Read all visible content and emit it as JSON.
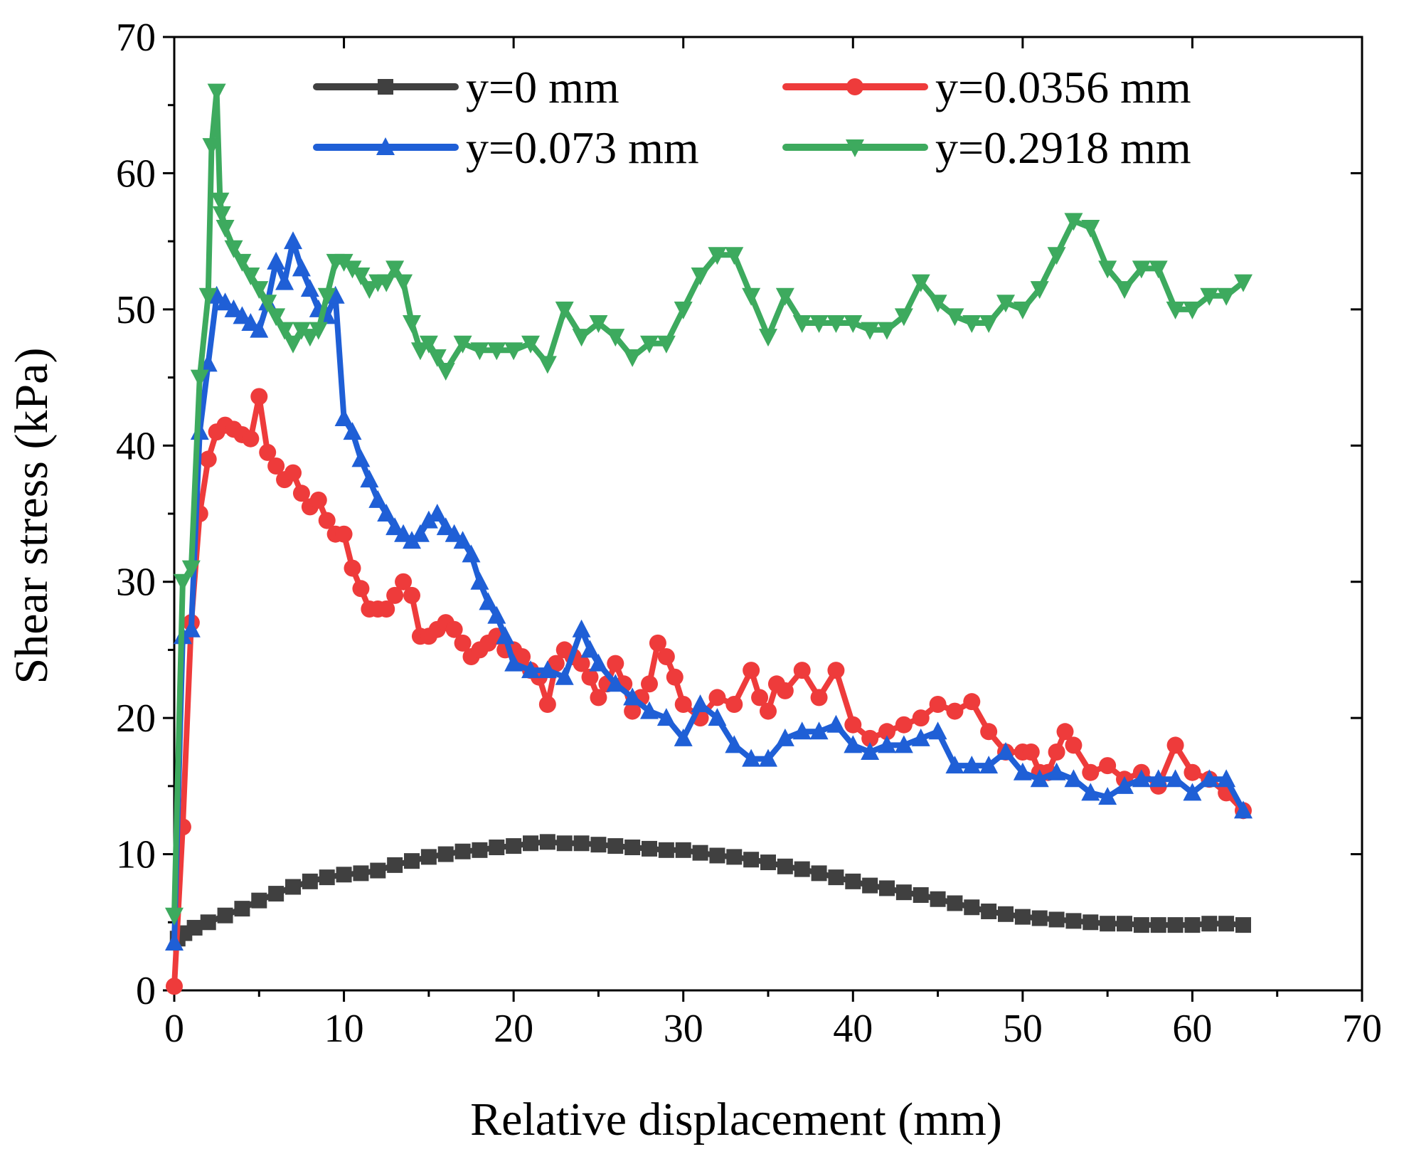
{
  "chart_data": {
    "type": "line",
    "title": "",
    "xlabel": "Relative displacement (mm)",
    "ylabel": "Shear stress (kPa)",
    "xlim": [
      0,
      70
    ],
    "ylim": [
      0,
      70
    ],
    "xticks": [
      0,
      10,
      20,
      30,
      40,
      50,
      60,
      70
    ],
    "yticks": [
      0,
      10,
      20,
      30,
      40,
      50,
      60,
      70
    ],
    "xtick_labels": [
      "0",
      "10",
      "20",
      "30",
      "40",
      "50",
      "60",
      "70"
    ],
    "ytick_labels": [
      "0",
      "10",
      "20",
      "30",
      "40",
      "50",
      "60",
      "70"
    ],
    "legend_position": "top",
    "grid": false,
    "series": [
      {
        "name": "y=0 mm",
        "color": "#404040",
        "marker": "square",
        "x": [
          0.2,
          0.6,
          1.2,
          2,
          3,
          4,
          5,
          6,
          7,
          8,
          9,
          10,
          11,
          12,
          13,
          14,
          15,
          16,
          17,
          18,
          19,
          20,
          21,
          22,
          23,
          24,
          25,
          26,
          27,
          28,
          29,
          30,
          31,
          32,
          33,
          34,
          35,
          36,
          37,
          38,
          39,
          40,
          41,
          42,
          43,
          44,
          45,
          46,
          47,
          48,
          49,
          50,
          51,
          52,
          53,
          54,
          55,
          56,
          57,
          58,
          59,
          60,
          61,
          62,
          63
        ],
        "y": [
          3.8,
          4.2,
          4.6,
          5.0,
          5.5,
          6.0,
          6.6,
          7.1,
          7.6,
          8.0,
          8.3,
          8.5,
          8.6,
          8.8,
          9.2,
          9.5,
          9.8,
          10.0,
          10.2,
          10.3,
          10.5,
          10.6,
          10.8,
          10.9,
          10.8,
          10.8,
          10.7,
          10.6,
          10.5,
          10.4,
          10.3,
          10.3,
          10.1,
          9.9,
          9.8,
          9.6,
          9.4,
          9.1,
          8.9,
          8.6,
          8.3,
          8.0,
          7.7,
          7.5,
          7.2,
          7.0,
          6.7,
          6.4,
          6.1,
          5.8,
          5.6,
          5.4,
          5.3,
          5.2,
          5.1,
          5.0,
          4.9,
          4.9,
          4.8,
          4.8,
          4.8,
          4.8,
          4.9,
          4.9,
          4.8
        ]
      },
      {
        "name": "y=0.0356 mm",
        "color": "#ee3b3b",
        "marker": "circle",
        "x": [
          0,
          0.5,
          1,
          1.5,
          2,
          2.5,
          3,
          3.5,
          4,
          4.5,
          5,
          5.5,
          6,
          6.5,
          7,
          7.5,
          8,
          8.5,
          9,
          9.5,
          10,
          10.5,
          11,
          11.5,
          12,
          12.5,
          13,
          13.5,
          14,
          14.5,
          15,
          15.5,
          16,
          16.5,
          17,
          17.5,
          18,
          18.5,
          19,
          19.5,
          20,
          20.5,
          21,
          21.5,
          22,
          22.5,
          23,
          23.5,
          24,
          24.5,
          25,
          25.5,
          26,
          26.5,
          27,
          27.5,
          28,
          28.5,
          29,
          29.5,
          30,
          31,
          32,
          33,
          34,
          34.5,
          35,
          35.5,
          36,
          37,
          38,
          39,
          40,
          41,
          42,
          43,
          44,
          45,
          46,
          47,
          48,
          49,
          50,
          50.5,
          51,
          51.5,
          52,
          52.5,
          53,
          54,
          55,
          56,
          57,
          58,
          59,
          60,
          61,
          62,
          63
        ],
        "y": [
          0.3,
          12,
          27,
          35,
          39,
          41,
          41.5,
          41.2,
          40.8,
          40.5,
          43.6,
          39.5,
          38.5,
          37.5,
          38,
          36.5,
          35.5,
          36,
          34.5,
          33.5,
          33.5,
          31,
          29.5,
          28,
          28,
          28,
          29,
          30,
          29,
          26,
          26,
          26.5,
          27,
          26.5,
          25.5,
          24.5,
          25,
          25.5,
          26,
          25,
          25,
          24.5,
          23.5,
          23,
          21,
          24,
          25,
          24.5,
          24,
          23,
          21.5,
          22.5,
          24,
          22.5,
          20.5,
          21.5,
          22.5,
          25.5,
          24.5,
          23,
          21,
          20,
          21.5,
          21,
          23.5,
          21.5,
          20.5,
          22.5,
          22,
          23.5,
          21.5,
          23.5,
          19.5,
          18.5,
          19,
          19.5,
          20,
          21,
          20.5,
          21.2,
          19,
          17.5,
          17.5,
          17.5,
          16,
          16,
          17.5,
          19,
          18,
          16,
          16.5,
          15.5,
          16,
          15,
          18,
          16,
          15.5,
          14.5,
          13.2
        ]
      },
      {
        "name": "y=0.073 mm",
        "color": "#1f5fd6",
        "marker": "triangle-up",
        "x": [
          0,
          0.5,
          1,
          1.5,
          2,
          2.5,
          3,
          3.5,
          4,
          4.5,
          5,
          5.5,
          6,
          6.5,
          7,
          7.5,
          8,
          8.5,
          9,
          9.5,
          10,
          10.5,
          11,
          11.5,
          12,
          12.5,
          13,
          13.5,
          14,
          14.5,
          15,
          15.5,
          16,
          16.5,
          17,
          17.5,
          18,
          18.5,
          19,
          19.5,
          20,
          21,
          22,
          23,
          24,
          24.5,
          25,
          26,
          27,
          28,
          29,
          30,
          31,
          32,
          33,
          34,
          35,
          36,
          37,
          38,
          39,
          40,
          41,
          42,
          43,
          44,
          45,
          46,
          47,
          48,
          49,
          50,
          51,
          52,
          53,
          54,
          55,
          56,
          57,
          58,
          59,
          60,
          61,
          62,
          63
        ],
        "y": [
          3.5,
          26,
          26.5,
          41,
          46,
          51,
          50.5,
          50,
          49.5,
          49,
          48.5,
          50.5,
          53.5,
          52,
          55,
          53,
          51.5,
          50,
          49.5,
          51,
          42,
          41,
          39,
          37.5,
          36,
          35,
          34,
          33.5,
          33,
          33.5,
          34.5,
          35,
          34,
          33.5,
          33,
          32,
          30,
          28.5,
          27.5,
          26,
          24,
          23.5,
          23.5,
          23,
          26.5,
          25,
          24,
          22.5,
          21.5,
          20.5,
          20,
          18.5,
          21,
          20,
          18,
          17,
          17,
          18.5,
          19,
          19,
          19.5,
          18,
          17.5,
          18,
          18,
          18.5,
          19,
          16.5,
          16.5,
          16.5,
          17.5,
          16,
          15.5,
          16,
          15.5,
          14.5,
          14.2,
          15,
          15.5,
          15.5,
          15.5,
          14.5,
          15.5,
          15.5,
          13.2
        ]
      },
      {
        "name": "y=0.2918 mm",
        "color": "#3daa5e",
        "marker": "triangle-down",
        "x": [
          0,
          0.5,
          1,
          1.5,
          2,
          2.2,
          2.5,
          2.7,
          2.8,
          3,
          3.5,
          4,
          4.5,
          5,
          5.5,
          6,
          6.5,
          7,
          7.5,
          8,
          8.5,
          9,
          9.5,
          10,
          10.5,
          11,
          11.5,
          12,
          12.5,
          13,
          13.5,
          14,
          14.5,
          15,
          15.5,
          16,
          17,
          18,
          19,
          20,
          21,
          22,
          23,
          24,
          25,
          26,
          27,
          28,
          29,
          30,
          31,
          32,
          33,
          34,
          35,
          36,
          37,
          38,
          39,
          40,
          41,
          42,
          43,
          44,
          45,
          46,
          47,
          48,
          49,
          50,
          51,
          52,
          53,
          54,
          55,
          56,
          57,
          58,
          59,
          60,
          61,
          62,
          63
        ],
        "y": [
          5.5,
          30,
          31,
          45,
          51,
          62,
          66,
          58,
          57,
          56,
          54.5,
          53.5,
          52.5,
          51.5,
          50.5,
          49.5,
          48.5,
          47.5,
          48.5,
          48,
          48.5,
          51,
          53.5,
          53.5,
          53,
          52.5,
          51.5,
          52,
          52,
          53,
          52,
          49,
          47,
          47.5,
          46.5,
          45.5,
          47.5,
          47,
          47,
          47,
          47.5,
          46,
          50,
          48,
          49,
          48,
          46.5,
          47.5,
          47.5,
          50,
          52.5,
          54,
          54,
          51,
          48,
          51,
          49,
          49,
          49,
          49,
          48.5,
          48.5,
          49.5,
          52,
          50.5,
          49.5,
          49,
          49,
          50.5,
          50,
          51.5,
          54,
          56.5,
          56,
          53,
          51.5,
          53,
          53,
          50,
          50,
          51,
          51,
          52
        ]
      }
    ]
  }
}
